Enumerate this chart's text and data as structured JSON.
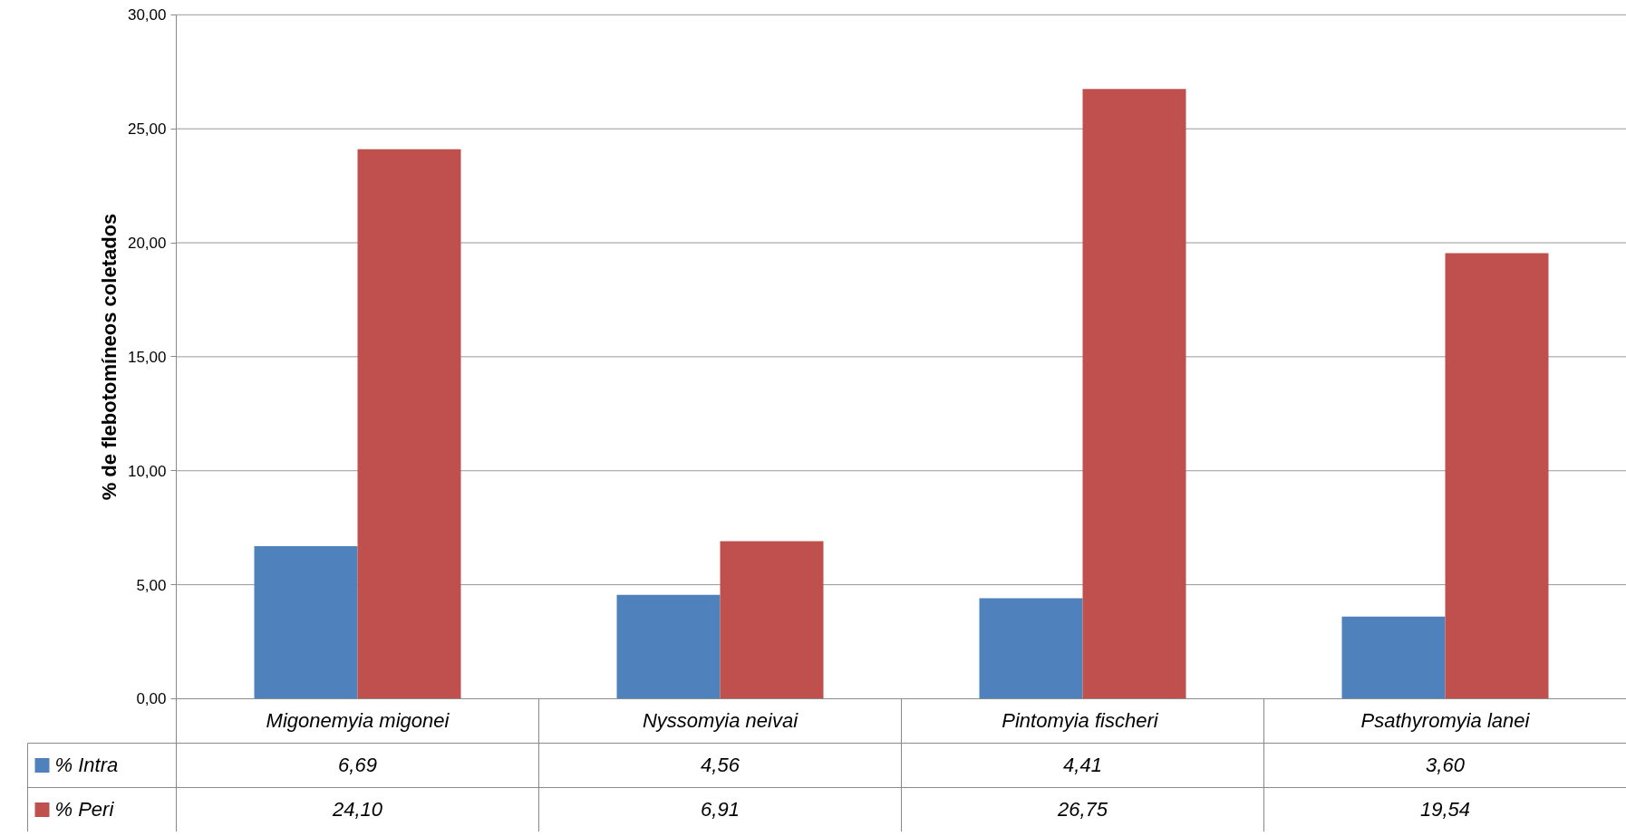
{
  "chart_data": {
    "type": "bar",
    "ylabel": "% de flebotomíneos coletados",
    "categories": [
      "Migonemyia migonei",
      "Nyssomyia neivai",
      "Pintomyia  fischeri",
      "Psathyromyia lanei"
    ],
    "series": [
      {
        "name": "% Intra",
        "color": "#4f81bd",
        "values": [
          6.69,
          4.56,
          4.41,
          3.6
        ],
        "value_labels": [
          "6,69",
          "4,56",
          "4,41",
          "3,60"
        ]
      },
      {
        "name": "% Peri",
        "color": "#c0504d",
        "values": [
          24.1,
          6.91,
          26.75,
          19.54
        ],
        "value_labels": [
          "24,10",
          "6,91",
          "26,75",
          "19,54"
        ]
      }
    ],
    "ylim": [
      0,
      30
    ],
    "yticks": [
      {
        "value": 0,
        "label": "0,00"
      },
      {
        "value": 5,
        "label": "5,00"
      },
      {
        "value": 10,
        "label": "10,00"
      },
      {
        "value": 15,
        "label": "15,00"
      },
      {
        "value": 20,
        "label": "20,00"
      },
      {
        "value": 25,
        "label": "25,00"
      },
      {
        "value": 30,
        "label": "30,00"
      }
    ],
    "grid": "y",
    "legend": "bottom"
  }
}
